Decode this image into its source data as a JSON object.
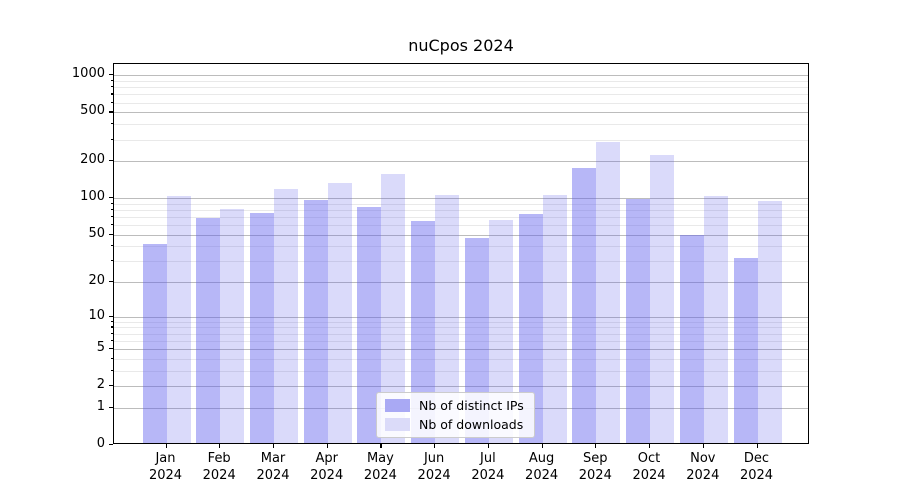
{
  "chart_data": {
    "type": "bar",
    "title": "nuCpos 2024",
    "categories": [
      "Jan",
      "Feb",
      "Mar",
      "Apr",
      "May",
      "Jun",
      "Jul",
      "Aug",
      "Sep",
      "Oct",
      "Nov",
      "Dec"
    ],
    "x_sublabel": "2024",
    "series": [
      {
        "name": "Nb of distinct IPs",
        "values": [
          40,
          66,
          73,
          93,
          81,
          63,
          45,
          71,
          170,
          95,
          48,
          31
        ]
      },
      {
        "name": "Nb of downloads",
        "values": [
          101,
          79,
          115,
          128,
          151,
          103,
          64,
          103,
          275,
          216,
          100,
          92
        ]
      }
    ],
    "xlabel": "",
    "ylabel": "",
    "yaxis": {
      "scale": "log1p",
      "ylim": [
        0,
        1236
      ],
      "major_ticks": [
        0,
        1,
        2,
        5,
        10,
        20,
        50,
        100,
        200,
        500,
        1000
      ],
      "minor_ticks": [
        3,
        4,
        6,
        7,
        8,
        9,
        30,
        40,
        60,
        70,
        80,
        90,
        300,
        400,
        600,
        700,
        800,
        900
      ]
    },
    "grid": true,
    "legend_position": "lower center"
  },
  "colors": {
    "ip_bar": "rgba(92,92,237,0.44)",
    "dl_bar": "rgba(82,82,232,0.21)",
    "ip_swatch": "#a9a9f4",
    "dl_swatch": "#dbdbf9",
    "grid_major": "#bcbcbc",
    "grid_minor": "#e9e9e9",
    "spine": "#000000"
  }
}
